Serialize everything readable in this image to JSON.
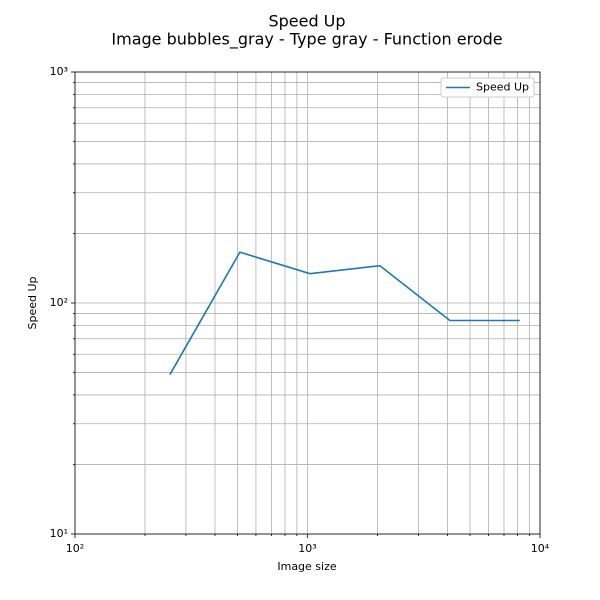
{
  "chart_data": {
    "type": "line",
    "title": "Speed Up",
    "subtitle": "Image bubbles_gray - Type gray - Function erode",
    "x_label": "Image size",
    "y_label": "Speed Up",
    "x": [
      256,
      512,
      1024,
      2048,
      4096,
      8192
    ],
    "series": [
      {
        "name": "Speed Up",
        "color": "#1f77b4",
        "values": [
          49,
          166,
          134,
          145,
          84,
          84
        ]
      }
    ],
    "log_x": true,
    "log_y": true,
    "xlim": [
      100,
      10000
    ],
    "ylim": [
      10,
      1000
    ],
    "xticks": [
      {
        "value": 100,
        "label": "10²"
      },
      {
        "value": 1000,
        "label": "10³"
      },
      {
        "value": 10000,
        "label": "10⁴"
      }
    ],
    "yticks": [
      {
        "value": 10,
        "label": "10¹"
      },
      {
        "value": 100,
        "label": "10²"
      },
      {
        "value": 1000,
        "label": "10³"
      }
    ],
    "xminorticks": [
      200,
      300,
      400,
      500,
      600,
      700,
      800,
      900,
      2000,
      3000,
      4000,
      5000,
      6000,
      7000,
      8000,
      9000
    ],
    "yminorticks": [
      20,
      30,
      40,
      50,
      60,
      70,
      80,
      90,
      200,
      300,
      400,
      500,
      600,
      700,
      800,
      900
    ],
    "grid": true,
    "legend": "upper right"
  }
}
